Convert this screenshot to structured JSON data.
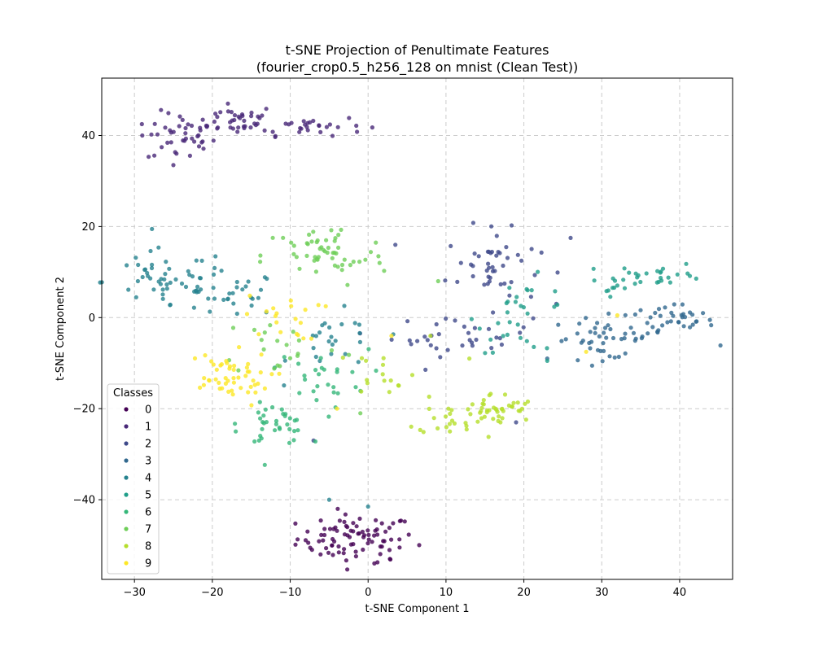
{
  "chart_data": {
    "type": "scatter",
    "title": "t-SNE Projection of Penultimate Features",
    "subtitle": "(fourier_crop0.5_h256_128 on mnist (Clean Test))",
    "xlabel": "t-SNE Component 1",
    "ylabel": "t-SNE Component 2",
    "xlim": [
      -34.2,
      46.8
    ],
    "ylim": [
      -57.5,
      52.6
    ],
    "xticks": [
      -30,
      -20,
      -10,
      0,
      10,
      20,
      30,
      40
    ],
    "yticks": [
      -40,
      -20,
      0,
      20,
      40
    ],
    "grid": true,
    "legend": {
      "title": "Classes",
      "placement": "lower-left"
    },
    "series": [
      {
        "name": "0",
        "color": "#440154",
        "clusters": [
          {
            "cx": -1.5,
            "cy": -48.5,
            "sx": 3.8,
            "sy": 2.6,
            "n": 85
          }
        ],
        "points": [
          [
            -7.2,
            -51
          ],
          [
            2.8,
            -53
          ],
          [
            0.8,
            -54
          ]
        ]
      },
      {
        "name": "1",
        "color": "#482878",
        "clusters": [
          {
            "cx": -24,
            "cy": 39.5,
            "sx": 2.2,
            "sy": 2.8,
            "n": 40
          },
          {
            "cx": -17,
            "cy": 43.5,
            "sx": 2.6,
            "sy": 1.6,
            "n": 35
          },
          {
            "cx": -8,
            "cy": 42.2,
            "sx": 3.8,
            "sy": 1.1,
            "n": 30
          }
        ],
        "points": [
          [
            -29,
            40
          ],
          [
            -25,
            33.5
          ],
          [
            -18,
            47
          ]
        ]
      },
      {
        "name": "2",
        "color": "#3e4989",
        "clusters": [
          {
            "cx": 16,
            "cy": 11,
            "sx": 3,
            "sy": 4,
            "n": 45
          },
          {
            "cx": 12,
            "cy": -4,
            "sx": 4.5,
            "sy": 2.2,
            "n": 35
          }
        ],
        "points": [
          [
            3.5,
            16
          ],
          [
            13.5,
            20.8
          ],
          [
            26,
            17.5
          ],
          [
            19,
            -23
          ],
          [
            -7,
            -27
          ]
        ]
      },
      {
        "name": "3",
        "color": "#31688e",
        "clusters": [
          {
            "cx": 30,
            "cy": -4.5,
            "sx": 3.2,
            "sy": 2.3,
            "n": 40
          },
          {
            "cx": 38.5,
            "cy": -1,
            "sx": 3,
            "sy": 2,
            "n": 40
          }
        ],
        "points": [
          [
            43,
            1
          ],
          [
            23,
            -9
          ]
        ]
      },
      {
        "name": "4",
        "color": "#26828e",
        "clusters": [
          {
            "cx": -26,
            "cy": 8,
            "sx": 4,
            "sy": 3.5,
            "n": 50
          },
          {
            "cx": -17.5,
            "cy": 5,
            "sx": 3,
            "sy": 2.5,
            "n": 30
          },
          {
            "cx": -4,
            "cy": -6,
            "sx": 3,
            "sy": 3.5,
            "n": 25
          }
        ],
        "points": [
          [
            -31,
            11.5
          ],
          [
            0,
            -41.5
          ],
          [
            -5,
            -40
          ]
        ]
      },
      {
        "name": "5",
        "color": "#1f9e89",
        "clusters": [
          {
            "cx": 37.5,
            "cy": 9.5,
            "sx": 3,
            "sy": 1.2,
            "n": 25
          },
          {
            "cx": 20,
            "cy": 0.5,
            "sx": 3,
            "sy": 4,
            "n": 30
          },
          {
            "cx": 31,
            "cy": 7,
            "sx": 1.5,
            "sy": 1,
            "n": 10
          }
        ],
        "points": [
          [
            23,
            -9.5
          ],
          [
            -12,
            -11
          ]
        ]
      },
      {
        "name": "6",
        "color": "#35b779",
        "clusters": [
          {
            "cx": -12,
            "cy": -23.5,
            "sx": 2.2,
            "sy": 2.2,
            "n": 35
          },
          {
            "cx": -6,
            "cy": -13,
            "sx": 3,
            "sy": 3,
            "n": 25
          }
        ],
        "points": [
          [
            -17,
            -25
          ],
          [
            -14,
            -27
          ]
        ]
      },
      {
        "name": "7",
        "color": "#6ece58",
        "clusters": [
          {
            "cx": -5.5,
            "cy": 13.5,
            "sx": 4,
            "sy": 3.5,
            "n": 55
          },
          {
            "cx": -11,
            "cy": -6,
            "sx": 4,
            "sy": 3.5,
            "n": 20
          }
        ],
        "points": [
          [
            9,
            8
          ],
          [
            -1,
            -21
          ]
        ]
      },
      {
        "name": "8",
        "color": "#b5de2b",
        "clusters": [
          {
            "cx": 16,
            "cy": -20.5,
            "sx": 2.8,
            "sy": 2,
            "n": 45
          },
          {
            "cx": 10.5,
            "cy": -21,
            "sx": 2,
            "sy": 2.5,
            "n": 15
          },
          {
            "cx": 2,
            "cy": -11.5,
            "sx": 2,
            "sy": 2.5,
            "n": 15
          }
        ],
        "points": [
          [
            10.5,
            -25
          ],
          [
            13,
            -9
          ],
          [
            8,
            -4
          ]
        ]
      },
      {
        "name": "9",
        "color": "#fde725",
        "clusters": [
          {
            "cx": -18.5,
            "cy": -13.5,
            "sx": 3,
            "sy": 3,
            "n": 50
          },
          {
            "cx": -11,
            "cy": 0,
            "sx": 2.5,
            "sy": 2.5,
            "n": 20
          }
        ],
        "points": [
          [
            -4,
            -20
          ],
          [
            28,
            -7.5
          ],
          [
            32,
            0.5
          ],
          [
            3,
            -4
          ]
        ]
      }
    ]
  }
}
